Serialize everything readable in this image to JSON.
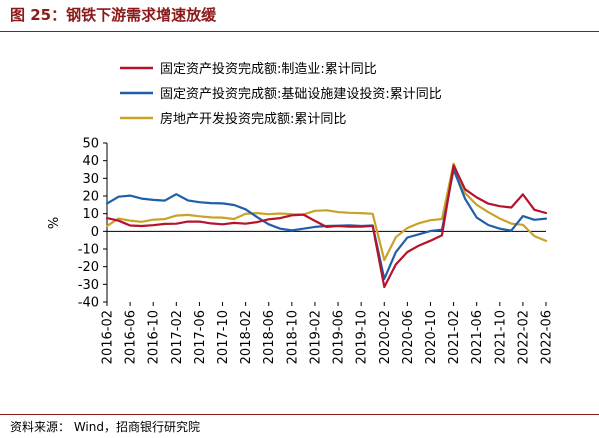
{
  "figure": {
    "title": "图 25：钢铁下游需求增速放缓",
    "source": "资料来源： Wind，招商银行研究院"
  },
  "chart_data": {
    "type": "line",
    "ylabel": "%",
    "ylim": [
      -40,
      50
    ],
    "yticks": [
      -40,
      -30,
      -20,
      -10,
      0,
      10,
      20,
      30,
      40,
      50
    ],
    "x": [
      "2016-02",
      "2016-04",
      "2016-06",
      "2016-08",
      "2016-10",
      "2016-12",
      "2017-02",
      "2017-04",
      "2017-06",
      "2017-08",
      "2017-10",
      "2017-12",
      "2018-02",
      "2018-04",
      "2018-06",
      "2018-08",
      "2018-10",
      "2018-12",
      "2019-02",
      "2019-04",
      "2019-06",
      "2019-08",
      "2019-10",
      "2019-12",
      "2020-02",
      "2020-04",
      "2020-06",
      "2020-08",
      "2020-10",
      "2020-12",
      "2021-02",
      "2021-04",
      "2021-06",
      "2021-08",
      "2021-10",
      "2021-12",
      "2022-02",
      "2022-04",
      "2022-06"
    ],
    "xtick_labels": [
      "2016-02",
      "2016-06",
      "2016-10",
      "2017-02",
      "2017-06",
      "2017-10",
      "2018-02",
      "2018-06",
      "2018-10",
      "2019-02",
      "2019-06",
      "2019-10",
      "2020-02",
      "2020-06",
      "2020-10",
      "2021-02",
      "2021-06",
      "2021-10",
      "2022-02",
      "2022-06"
    ],
    "legend_position": "top-left",
    "series": [
      {
        "name": "固定资产投资完成额:制造业:累计同比",
        "color": "#b5122b",
        "values": [
          7.5,
          6.0,
          3.3,
          3.0,
          3.5,
          4.2,
          4.3,
          5.5,
          5.5,
          4.5,
          4.0,
          4.8,
          4.3,
          5.2,
          6.8,
          7.5,
          9.1,
          9.5,
          5.9,
          2.5,
          3.0,
          2.6,
          2.6,
          3.1,
          -31.5,
          -18.8,
          -11.7,
          -8.1,
          -5.3,
          -2.2,
          37.3,
          23.8,
          19.2,
          15.7,
          14.2,
          13.5,
          20.9,
          12.2,
          10.4
        ]
      },
      {
        "name": "固定资产投资完成额:基础设施建设投资:累计同比",
        "color": "#1f5fa8",
        "values": [
          15.7,
          19.6,
          20.2,
          18.5,
          17.8,
          17.4,
          21.0,
          17.5,
          16.5,
          16.0,
          15.8,
          14.9,
          12.5,
          8.0,
          4.0,
          1.5,
          0.5,
          1.5,
          2.5,
          3.0,
          3.2,
          3.4,
          3.0,
          3.3,
          -26.9,
          -11.8,
          -3.5,
          -1.7,
          0.2,
          0.9,
          35.0,
          18.4,
          7.8,
          3.6,
          1.5,
          0.4,
          8.6,
          6.5,
          7.2
        ]
      },
      {
        "name": "房地产开发投资完成额:累计同比",
        "color": "#c9a227",
        "values": [
          3.0,
          7.2,
          6.1,
          5.4,
          6.6,
          6.9,
          8.9,
          9.3,
          8.5,
          7.9,
          7.8,
          7.0,
          9.9,
          10.3,
          9.7,
          10.1,
          9.7,
          9.5,
          11.6,
          11.9,
          10.9,
          10.5,
          10.3,
          9.9,
          -16.3,
          -3.3,
          1.9,
          4.6,
          6.3,
          7.0,
          38.3,
          21.6,
          15.0,
          10.9,
          7.2,
          4.4,
          3.7,
          -2.7,
          -5.4
        ]
      }
    ]
  }
}
